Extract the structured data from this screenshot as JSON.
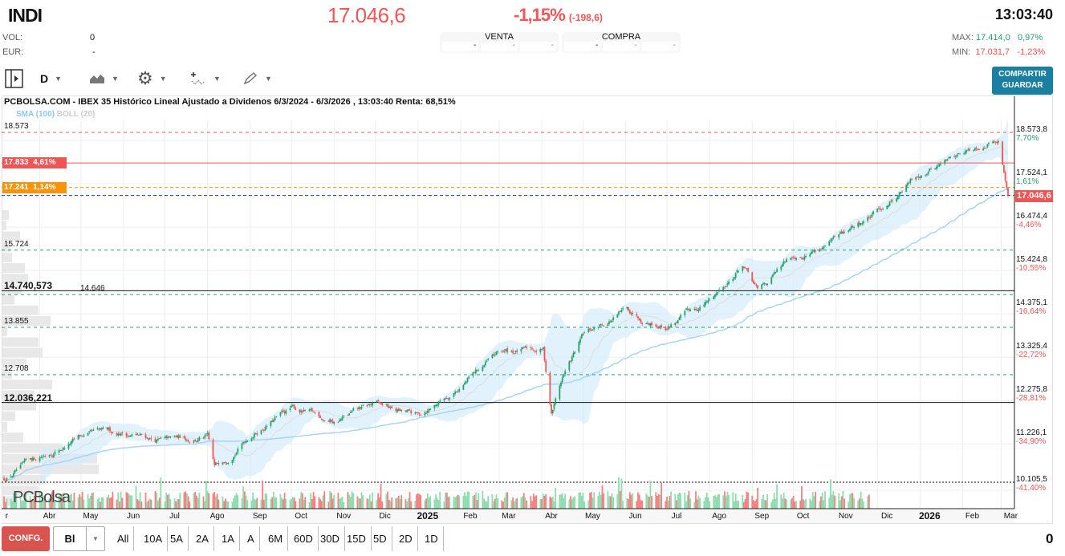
{
  "header": {
    "ticker": "INDI",
    "price": "17.046,6",
    "change_pct": "-1,15%",
    "change_abs": "(-198,6)",
    "time": "13:03:40",
    "vol_label": "VOL:",
    "vol_value": "0",
    "eur_label": "EUR:",
    "eur_value": "-",
    "venta": {
      "label": "VENTA",
      "cells": [
        "-",
        "-",
        "-"
      ]
    },
    "compra": {
      "label": "COMPRA",
      "cells": [
        "-",
        "-",
        "-"
      ]
    },
    "max_label": "MAX:",
    "max_value": "17.414,0",
    "max_pct": "0,97%",
    "min_label": "MIN:",
    "min_value": "17.031,7",
    "min_pct": "-1,23%"
  },
  "toolbar": {
    "period": "D",
    "share_label": "COMPARTIR",
    "save_label": "GUARDAR",
    "icons": [
      "panel-toggle-icon",
      "area-chart-icon",
      "gear-icon",
      "indicator-icon",
      "pencil-icon"
    ]
  },
  "chart": {
    "title": "PCBOLSA.COM - IBEX 35 Histórico Lineal Ajustado a Dividenos 6/3/2024 - 6/3/2026 , 13:03:40 Renta: 68,51%",
    "indicator_sma": "SMA (100)",
    "indicator_boll": "BOLL (20)",
    "watermark": "PCBolsa",
    "levels": [
      {
        "label": "18.573",
        "value": 18573,
        "style": "red-dashed"
      },
      {
        "label": "17.833",
        "pct": "4,61%",
        "value": 17833,
        "style": "red-solid",
        "tag_color": "#f05555"
      },
      {
        "label": "17.241",
        "pct": "1,14%",
        "value": 17241,
        "style": "orange-dashed",
        "tag_color": "#f89406"
      },
      {
        "label": "",
        "value": 17046.6,
        "style": "blue-dashed"
      },
      {
        "label": "15.724",
        "value": 15724,
        "style": "green-dashed"
      },
      {
        "label": "14.740,573",
        "value": 14740.573,
        "style": "black-solid"
      },
      {
        "label": "14.646",
        "value": 14646,
        "style": "green-dashed"
      },
      {
        "label": "13.855",
        "value": 13855,
        "style": "green-dashed"
      },
      {
        "label": "12.708",
        "value": 12708,
        "style": "green-dashed"
      },
      {
        "label": "12.036,221",
        "value": 12036.221,
        "style": "black-solid"
      },
      {
        "label": "",
        "value": 10105.5,
        "style": "black-dotted"
      }
    ],
    "current_tag": "17.046,6",
    "y_axis": [
      {
        "v": 18573.8,
        "t": "18.573,8",
        "p": "7,70%"
      },
      {
        "v": 17524.1,
        "t": "17.524,1",
        "p": "1,61%"
      },
      {
        "v": 16474.4,
        "t": "16.474,4",
        "p": "-4,46%"
      },
      {
        "v": 15424.8,
        "t": "15.424,8",
        "p": "-10,55%"
      },
      {
        "v": 14375.1,
        "t": "14.375,1",
        "p": "-16,64%"
      },
      {
        "v": 13325.4,
        "t": "13.325,4",
        "p": "-22,72%"
      },
      {
        "v": 12275.8,
        "t": "12.275,8",
        "p": "-28,81%"
      },
      {
        "v": 11226.1,
        "t": "11.226,1",
        "p": "-34,90%"
      },
      {
        "v": 10105.5,
        "t": "10.105,5",
        "p": "-41,40%"
      }
    ],
    "months": [
      [
        "2024-03-01",
        "r"
      ],
      [
        "2024-04-01",
        "Abr"
      ],
      [
        "2024-05-01",
        "May"
      ],
      [
        "2024-06-01",
        "Jun"
      ],
      [
        "2024-07-01",
        "Jul"
      ],
      [
        "2024-08-01",
        "Ago"
      ],
      [
        "2024-09-01",
        "Sep"
      ],
      [
        "2024-10-01",
        "Oct"
      ],
      [
        "2024-11-01",
        "Nov"
      ],
      [
        "2024-12-01",
        "Dic"
      ],
      [
        "2025-01-01",
        "2025"
      ],
      [
        "2025-02-01",
        "Feb"
      ],
      [
        "2025-03-01",
        "Mar"
      ],
      [
        "2025-04-01",
        "Abr"
      ],
      [
        "2025-05-01",
        "May"
      ],
      [
        "2025-06-01",
        "Jun"
      ],
      [
        "2025-07-01",
        "Jul"
      ],
      [
        "2025-08-01",
        "Ago"
      ],
      [
        "2025-09-01",
        "Sep"
      ],
      [
        "2025-10-01",
        "Oct"
      ],
      [
        "2025-11-01",
        "Nov"
      ],
      [
        "2025-12-01",
        "Dic"
      ],
      [
        "2026-01-01",
        "2026"
      ],
      [
        "2026-02-01",
        "Feb"
      ],
      [
        "2026-03-01",
        "Mar"
      ]
    ],
    "colors": {
      "up": "#26a269",
      "down": "#f05555",
      "sma": "#a8d4f5",
      "boll": "#d6ecfb"
    }
  },
  "chart_data": {
    "type": "candlestick",
    "ylim": [
      10105.5,
      18573.8
    ],
    "x_range": [
      "2024-03-06",
      "2026-03-06"
    ],
    "price_path": [
      [
        "2024-03-06",
        10200
      ],
      [
        "2024-04-01",
        10710
      ],
      [
        "2024-05-01",
        11194
      ],
      [
        "2024-06-01",
        11291
      ],
      [
        "2024-07-01",
        11097
      ],
      [
        "2024-08-01",
        11194
      ],
      [
        "2024-08-06",
        10417
      ],
      [
        "2024-09-01",
        11291
      ],
      [
        "2024-10-01",
        11874
      ],
      [
        "2024-11-01",
        11583
      ],
      [
        "2024-12-01",
        11971
      ],
      [
        "2025-01-01",
        11680
      ],
      [
        "2025-02-01",
        12457
      ],
      [
        "2025-03-01",
        13233
      ],
      [
        "2025-04-02",
        13330
      ],
      [
        "2025-04-08",
        11777
      ],
      [
        "2025-04-16",
        12650
      ],
      [
        "2025-05-01",
        13622
      ],
      [
        "2025-06-01",
        14243
      ],
      [
        "2025-07-01",
        13913
      ],
      [
        "2025-08-01",
        14496
      ],
      [
        "2025-08-25",
        15370
      ],
      [
        "2025-09-05",
        14690
      ],
      [
        "2025-10-01",
        15564
      ],
      [
        "2025-11-01",
        15952
      ],
      [
        "2025-12-01",
        16632
      ],
      [
        "2026-01-01",
        17603
      ],
      [
        "2026-02-01",
        18088
      ],
      [
        "2026-02-27",
        18515
      ],
      [
        "2026-03-06",
        17046.6
      ]
    ]
  },
  "footer": {
    "config_label": "CONFG.",
    "type_value": "Bl",
    "ranges": [
      "All",
      "10A",
      "5A",
      "2A",
      "1A",
      "A",
      "6M",
      "60D",
      "30D",
      "15D",
      "5D",
      "2D",
      "1D"
    ],
    "right_value": "0"
  }
}
